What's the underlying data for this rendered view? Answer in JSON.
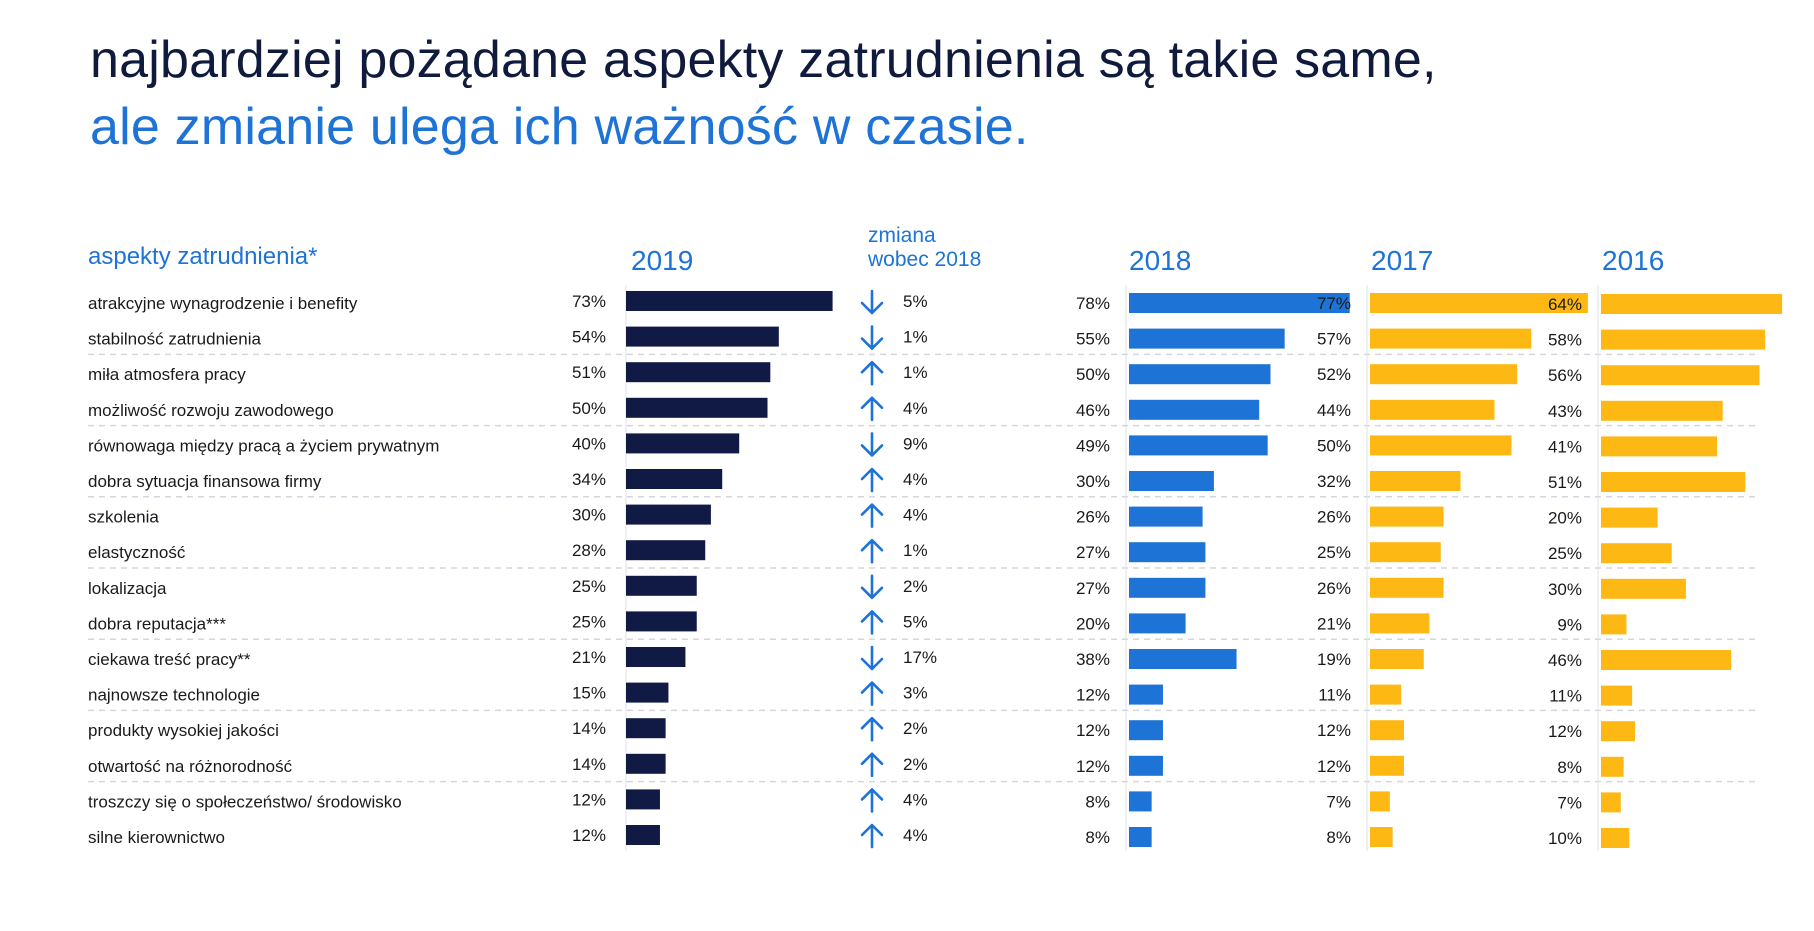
{
  "title": {
    "line1": "najbardziej pożądane aspekty zatrudnienia są takie same,",
    "line2": "ale zmianie ulega ich ważność w czasie."
  },
  "headers": {
    "aspects": "aspekty zatrudnienia*",
    "y2019": "2019",
    "change_line1": "zmiana",
    "change_line2": "wobec 2018",
    "y2018": "2018",
    "y2017": "2017",
    "y2016": "2016"
  },
  "colors": {
    "y2019": "#101a45",
    "y2018": "#1e73d6",
    "y2017": "#fdb813",
    "y2016": "#fdb813",
    "arrow": "#1e73d6",
    "text": "#1a1a1a",
    "accent": "#1e73d6"
  },
  "chart_data": {
    "type": "bar",
    "orientation": "horizontal",
    "value_unit": "%",
    "categories": [
      "atrakcyjne wynagrodzenie i benefity",
      "stabilność zatrudnienia",
      "miła atmosfera pracy",
      "możliwość rozwoju zawodowego",
      "równowaga między pracą a życiem prywatnym",
      "dobra sytuacja finansowa firmy",
      "szkolenia",
      "elastyczność",
      "lokalizacja",
      "dobra reputacja***",
      "ciekawa treść pracy**",
      "najnowsze technologie",
      "produkty wysokiej jakości",
      "otwartość na różnorodność",
      "troszczy się o społeczeństwo/ środowisko",
      "silne kierownictwo"
    ],
    "series": [
      {
        "name": "2019",
        "values": [
          73,
          54,
          51,
          50,
          40,
          34,
          30,
          28,
          25,
          25,
          21,
          15,
          14,
          14,
          12,
          12
        ]
      },
      {
        "name": "2018",
        "values": [
          78,
          55,
          50,
          46,
          49,
          30,
          26,
          27,
          27,
          20,
          38,
          12,
          12,
          12,
          8,
          8
        ]
      },
      {
        "name": "2017",
        "values": [
          77,
          57,
          52,
          44,
          50,
          32,
          26,
          25,
          26,
          21,
          19,
          11,
          12,
          12,
          7,
          8
        ]
      },
      {
        "name": "2016",
        "values": [
          64,
          58,
          56,
          43,
          41,
          51,
          20,
          25,
          30,
          9,
          46,
          11,
          12,
          8,
          7,
          10
        ]
      }
    ],
    "change_vs_2018": {
      "direction": [
        "down",
        "down",
        "up",
        "up",
        "down",
        "up",
        "up",
        "up",
        "down",
        "up",
        "down",
        "up",
        "up",
        "up",
        "up",
        "up"
      ],
      "values": [
        5,
        1,
        1,
        4,
        9,
        4,
        4,
        1,
        2,
        5,
        17,
        3,
        2,
        2,
        4,
        4
      ]
    },
    "xlim": [
      0,
      100
    ]
  }
}
